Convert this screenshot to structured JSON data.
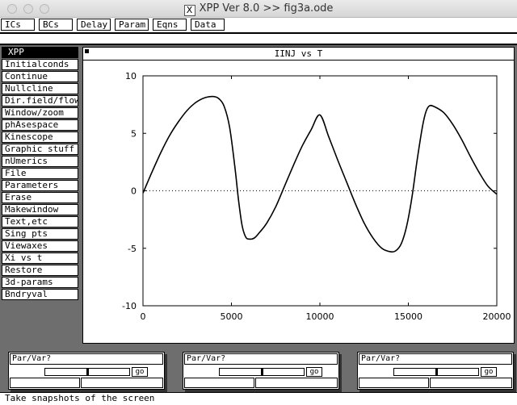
{
  "window": {
    "title": "XPP Ver 8.0 >> fig3a.ode",
    "logo": "X"
  },
  "top_menu": [
    {
      "label": "ICs"
    },
    {
      "label": "BCs"
    },
    {
      "label": "Delay"
    },
    {
      "label": "Param"
    },
    {
      "label": "Eqns"
    },
    {
      "label": "Data"
    }
  ],
  "left_menu": {
    "header": "XPP",
    "items": [
      "Initialconds",
      "Continue",
      "Nullcline",
      "Dir.field/flow",
      "Window/zoom",
      "phAsespace",
      "Kinescope",
      "Graphic stuff",
      "nUmerics",
      "File",
      "Parameters",
      "Erase",
      "Makewindow",
      "Text,etc",
      "Sing pts",
      "Viewaxes",
      "Xi vs t",
      "Restore",
      "3d-params",
      "Bndryval"
    ]
  },
  "graph": {
    "title": "IINJ vs T"
  },
  "chart_data": {
    "type": "line",
    "title": "IINJ vs T",
    "xlabel": "",
    "ylabel": "",
    "xlim": [
      0,
      20000
    ],
    "ylim": [
      -10,
      10
    ],
    "x_ticks": [
      "0",
      "5000",
      "10000",
      "15000",
      "20000"
    ],
    "y_ticks": [
      "10",
      "5",
      "0",
      "-5",
      "-10"
    ],
    "zero_line": "dotted",
    "series": [
      {
        "x": [
          0,
          500,
          1000,
          1500,
          2000,
          2500,
          3000,
          3500,
          4000,
          4300,
          4600,
          4900,
          5200,
          5400,
          5600,
          5800,
          6000,
          6300,
          6600,
          7000,
          7500,
          8000,
          8500,
          9000,
          9500,
          10000,
          10500,
          11000,
          11500,
          12000,
          12500,
          13000,
          13500,
          14000,
          14300,
          14600,
          14900,
          15200,
          15500,
          15800,
          16000,
          16200,
          16500,
          17000,
          17500,
          18000,
          18500,
          19000,
          19500,
          20000
        ],
        "y": [
          -0.2,
          1.6,
          3.3,
          4.8,
          6.0,
          7.0,
          7.7,
          8.1,
          8.2,
          8.0,
          7.3,
          5.5,
          2.0,
          -0.8,
          -3.0,
          -4.0,
          -4.2,
          -4.1,
          -3.6,
          -2.8,
          -1.4,
          0.4,
          2.2,
          3.9,
          5.3,
          6.6,
          4.7,
          2.7,
          0.8,
          -1.1,
          -2.8,
          -4.1,
          -5.0,
          -5.3,
          -5.2,
          -4.6,
          -3.1,
          -0.6,
          2.7,
          5.6,
          6.9,
          7.4,
          7.3,
          6.8,
          5.8,
          4.5,
          3.0,
          1.6,
          0.4,
          -0.3
        ]
      }
    ]
  },
  "sliders": [
    {
      "label": "Par/Var?",
      "go": "go"
    },
    {
      "label": "Par/Var?",
      "go": "go"
    },
    {
      "label": "Par/Var?",
      "go": "go"
    }
  ],
  "status": "Take snapshots of the screen"
}
